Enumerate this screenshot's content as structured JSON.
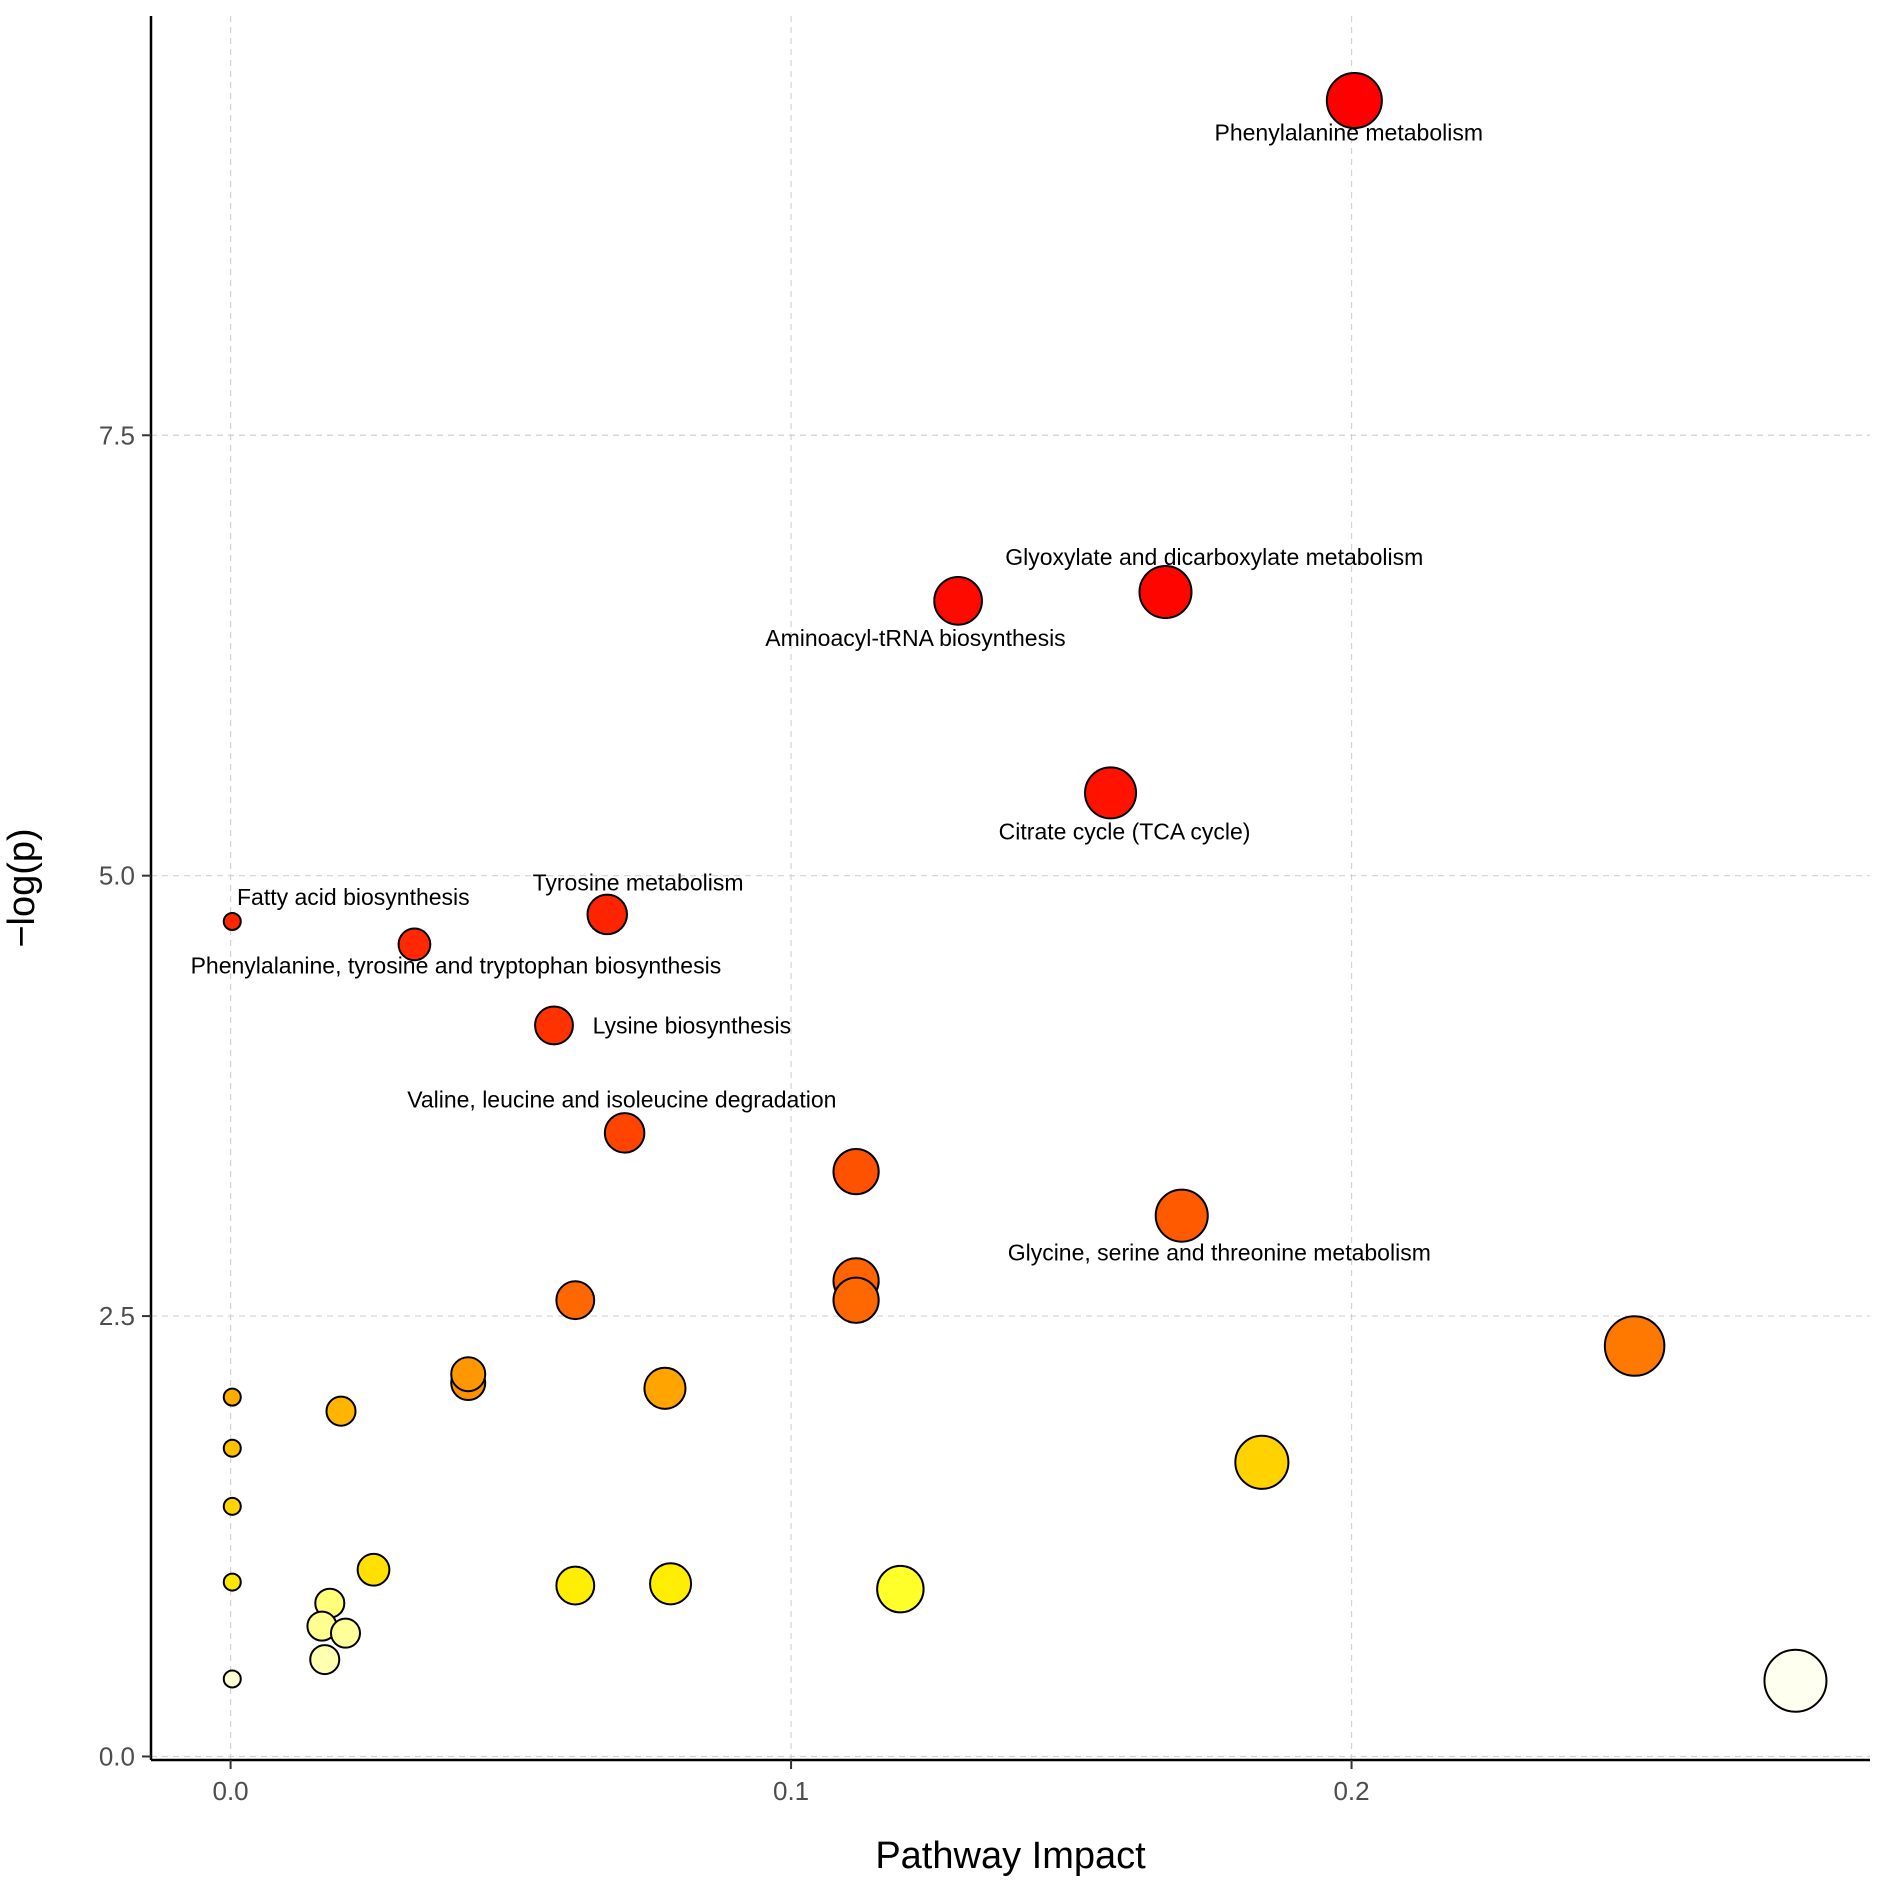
{
  "chart_data": {
    "type": "scatter",
    "title": "",
    "xlabel": "Pathway Impact",
    "ylabel": "−log(p)",
    "xlim": [
      -0.0142,
      0.2925
    ],
    "ylim": [
      -0.02,
      9.88
    ],
    "xticks": [
      0.0,
      0.1,
      0.2
    ],
    "xtick_labels": [
      "0.0",
      "0.1",
      "0.2"
    ],
    "yticks": [
      0.0,
      2.5,
      5.0,
      7.5
    ],
    "ytick_labels": [
      "0.0",
      "2.5",
      "5.0",
      "7.5"
    ],
    "grid": true,
    "legend": "none",
    "points": [
      {
        "x": 0.2005,
        "y": 9.4,
        "size": 0.2,
        "color": "#ff0000",
        "label": "Phenylalanine metabolism",
        "label_x": 0.1995,
        "label_y": 9.22
      },
      {
        "x": 0.1668,
        "y": 6.61,
        "size": 0.17,
        "color": "#ff0500",
        "label": "Glyoxylate and dicarboxylate metabolism",
        "label_x": 0.1755,
        "label_y": 6.81
      },
      {
        "x": 0.1298,
        "y": 6.56,
        "size": 0.13,
        "color": "#ff0a00",
        "label": "Aminoacyl-tRNA biosynthesis",
        "label_x": 0.1222,
        "label_y": 6.35
      },
      {
        "x": 0.157,
        "y": 5.47,
        "size": 0.16,
        "color": "#ff1200",
        "label": "Citrate cycle (TCA cycle)",
        "label_x": 0.1595,
        "label_y": 5.25
      },
      {
        "x": 0.0672,
        "y": 4.78,
        "size": 0.07,
        "color": "#ff2400",
        "label": "Tyrosine metabolism",
        "label_x": 0.0727,
        "label_y": 4.96
      },
      {
        "x": 0.0003,
        "y": 4.74,
        "size": 0.0,
        "color": "#ff2600",
        "label": "Fatty acid biosynthesis",
        "label_x": 0.0219,
        "label_y": 4.88
      },
      {
        "x": 0.0328,
        "y": 4.61,
        "size": 0.03,
        "color": "#ff2800",
        "label": "Phenylalanine, tyrosine and tryptophan biosynthesis",
        "label_x": 0.0402,
        "label_y": 4.49
      },
      {
        "x": 0.0577,
        "y": 4.15,
        "size": 0.06,
        "color": "#ff3200",
        "label": "Lysine biosynthesis",
        "label_x": 0.0823,
        "label_y": 4.15
      },
      {
        "x": 0.0703,
        "y": 3.54,
        "size": 0.07,
        "color": "#ff4400",
        "label": "Valine, leucine and isoleucine degradation",
        "label_x": 0.0698,
        "label_y": 3.73
      },
      {
        "x": 0.1116,
        "y": 3.32,
        "size": 0.11,
        "color": "#ff5200",
        "label": "",
        "label_x": 0,
        "label_y": 0
      },
      {
        "x": 0.1697,
        "y": 3.07,
        "size": 0.17,
        "color": "#ff5a00",
        "label": "Glycine, serine and threonine metabolism",
        "label_x": 0.1764,
        "label_y": 2.86
      },
      {
        "x": 0.1116,
        "y": 2.7,
        "size": 0.11,
        "color": "#ff6400",
        "label": "",
        "label_x": 0,
        "label_y": 0
      },
      {
        "x": 0.1116,
        "y": 2.59,
        "size": 0.11,
        "color": "#ff6800",
        "label": "",
        "label_x": 0,
        "label_y": 0
      },
      {
        "x": 0.0615,
        "y": 2.59,
        "size": 0.06,
        "color": "#ff6800",
        "label": "",
        "label_x": 0,
        "label_y": 0
      },
      {
        "x": 0.2505,
        "y": 2.33,
        "size": 0.25,
        "color": "#ff7800",
        "label": "",
        "label_x": 0,
        "label_y": 0
      },
      {
        "x": 0.0424,
        "y": 2.12,
        "size": 0.04,
        "color": "#ff9000",
        "label": "",
        "label_x": 0,
        "label_y": 0
      },
      {
        "x": 0.0424,
        "y": 2.17,
        "size": 0.04,
        "color": "#ff9800",
        "label": "",
        "label_x": 0,
        "label_y": 0
      },
      {
        "x": 0.0775,
        "y": 2.09,
        "size": 0.08,
        "color": "#ffa400",
        "label": "",
        "label_x": 0,
        "label_y": 0
      },
      {
        "x": 0.0003,
        "y": 2.04,
        "size": 0.0,
        "color": "#ffac00",
        "label": "",
        "label_x": 0,
        "label_y": 0
      },
      {
        "x": 0.0197,
        "y": 1.96,
        "size": 0.02,
        "color": "#ffb400",
        "label": "",
        "label_x": 0,
        "label_y": 0
      },
      {
        "x": 0.0003,
        "y": 1.75,
        "size": 0.0,
        "color": "#ffc000",
        "label": "",
        "label_x": 0,
        "label_y": 0
      },
      {
        "x": 0.184,
        "y": 1.67,
        "size": 0.18,
        "color": "#ffd200",
        "label": "",
        "label_x": 0,
        "label_y": 0
      },
      {
        "x": 0.0003,
        "y": 1.42,
        "size": 0.0,
        "color": "#ffd400",
        "label": "",
        "label_x": 0,
        "label_y": 0
      },
      {
        "x": 0.0255,
        "y": 1.06,
        "size": 0.03,
        "color": "#ffe000",
        "label": "",
        "label_x": 0,
        "label_y": 0
      },
      {
        "x": 0.0003,
        "y": 0.99,
        "size": 0.0,
        "color": "#ffe800",
        "label": "",
        "label_x": 0,
        "label_y": 0
      },
      {
        "x": 0.0615,
        "y": 0.97,
        "size": 0.06,
        "color": "#ffee00",
        "label": "",
        "label_x": 0,
        "label_y": 0
      },
      {
        "x": 0.0785,
        "y": 0.98,
        "size": 0.08,
        "color": "#ffee00",
        "label": "",
        "label_x": 0,
        "label_y": 0
      },
      {
        "x": 0.1195,
        "y": 0.95,
        "size": 0.12,
        "color": "#ffff2a",
        "label": "",
        "label_x": 0,
        "label_y": 0
      },
      {
        "x": 0.0177,
        "y": 0.87,
        "size": 0.02,
        "color": "#ffff7a",
        "label": "",
        "label_x": 0,
        "label_y": 0
      },
      {
        "x": 0.0163,
        "y": 0.74,
        "size": 0.02,
        "color": "#ffff90",
        "label": "",
        "label_x": 0,
        "label_y": 0
      },
      {
        "x": 0.0205,
        "y": 0.7,
        "size": 0.02,
        "color": "#ffff9a",
        "label": "",
        "label_x": 0,
        "label_y": 0
      },
      {
        "x": 0.0168,
        "y": 0.55,
        "size": 0.02,
        "color": "#ffffb0",
        "label": "",
        "label_x": 0,
        "label_y": 0
      },
      {
        "x": 0.0003,
        "y": 0.44,
        "size": 0.0,
        "color": "#ffffd4",
        "label": "",
        "label_x": 0,
        "label_y": 0
      },
      {
        "x": 0.2792,
        "y": 0.43,
        "size": 0.28,
        "color": "#fffff0",
        "label": "",
        "label_x": 0,
        "label_y": 0
      }
    ]
  }
}
